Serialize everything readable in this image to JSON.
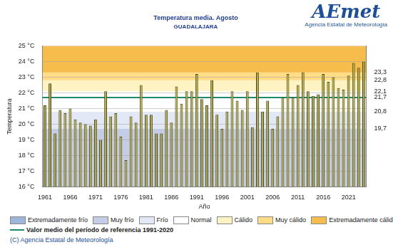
{
  "chart_data": {
    "type": "bar",
    "title": "Temperatura media. Agosto",
    "subtitle": "GUADALAJARA",
    "x_label": "Año",
    "y_label": "Temperatura",
    "categories": [
      "1961",
      null,
      null,
      null,
      null,
      "1966",
      null,
      null,
      null,
      null,
      "1971",
      null,
      null,
      null,
      null,
      "1976",
      null,
      null,
      null,
      null,
      "1981",
      null,
      null,
      null,
      null,
      "1986",
      null,
      null,
      null,
      null,
      "1991",
      null,
      null,
      null,
      null,
      "1996",
      null,
      null,
      null,
      null,
      "2001",
      null,
      null,
      null,
      null,
      "2006",
      null,
      null,
      null,
      null,
      "2011",
      null,
      null,
      null,
      null,
      "2016",
      null,
      null,
      null,
      null,
      "2021",
      null,
      null,
      null
    ],
    "values": [
      21.2,
      22.6,
      19.4,
      20.9,
      20.7,
      21.0,
      20.3,
      20.1,
      20.0,
      19.9,
      20.3,
      19.0,
      22.1,
      20.5,
      20.7,
      19.2,
      17.7,
      20.5,
      20.1,
      22.5,
      20.6,
      20.6,
      19.4,
      19.4,
      20.9,
      20.1,
      22.4,
      21.3,
      22.1,
      22.1,
      23.2,
      21.6,
      21.2,
      22.8,
      20.6,
      19.7,
      20.8,
      22.1,
      21.5,
      20.9,
      22.1,
      19.8,
      23.3,
      20.8,
      21.5,
      19.7,
      20.5,
      21.7,
      23.2,
      21.7,
      22.5,
      23.3,
      22.1,
      21.8,
      21.9,
      23.2,
      22.7,
      23.0,
      22.3,
      22.2,
      23.1,
      23.9,
      23.6,
      24.0
    ],
    "color": "#aea84a",
    "ylim": [
      16,
      25
    ],
    "yticks": [
      {
        "value": 16,
        "label": "16 °C"
      },
      {
        "value": 17,
        "label": "17 °C"
      },
      {
        "value": 18,
        "label": "18 °C"
      },
      {
        "value": 19,
        "label": "19 °C"
      },
      {
        "value": 20,
        "label": "20 °C"
      },
      {
        "value": 21,
        "label": "21 °C"
      },
      {
        "value": 22,
        "label": "22 °C"
      },
      {
        "value": 23,
        "label": "23 °C"
      },
      {
        "value": 24,
        "label": "24 °C"
      },
      {
        "value": 25,
        "label": "25 °C"
      }
    ],
    "y2lim": [
      16,
      25
    ],
    "y2ticks": [
      {
        "value": 23.3,
        "label": "23,3"
      },
      {
        "value": 22.8,
        "label": "22,8"
      },
      {
        "value": 22.1,
        "label": "22,1"
      },
      {
        "value": 21.7,
        "label": "21,7"
      },
      {
        "value": 20.8,
        "label": "20,8"
      },
      {
        "value": 19.7,
        "label": "19,7"
      }
    ],
    "grid": true,
    "legend": "bottom",
    "bands": [
      {
        "name": "Extremadamente frío",
        "color": "#9db6da"
      },
      {
        "name": "Muy frío",
        "color": "#c5cde6",
        "from": 16,
        "to": 19.7
      },
      {
        "name": "Frío",
        "color": "#e2e8f5",
        "from": 19.7,
        "to": 20.8
      },
      {
        "name": "Normal",
        "color": "#ffffff",
        "from": 20.8,
        "to": 22.1
      },
      {
        "name": "Cálido",
        "color": "#fff3c4",
        "from": 22.1,
        "to": 22.8
      },
      {
        "name": "Muy cálido",
        "color": "#ffdc86",
        "from": 22.8,
        "to": 23.3
      },
      {
        "name": "Extremadamente cálido",
        "color": "#f7bd4c",
        "from": 23.3,
        "to": 25
      }
    ],
    "reference": {
      "name": "Valor medio del período de referencia 1991-2020",
      "value": 21.7,
      "color": "#1a8a6a"
    },
    "logo": {
      "name": "AEmet",
      "text": "Agencia Estatal de Meteorología"
    },
    "copyright": "(C) Agencia Estatal de Meteorología"
  }
}
